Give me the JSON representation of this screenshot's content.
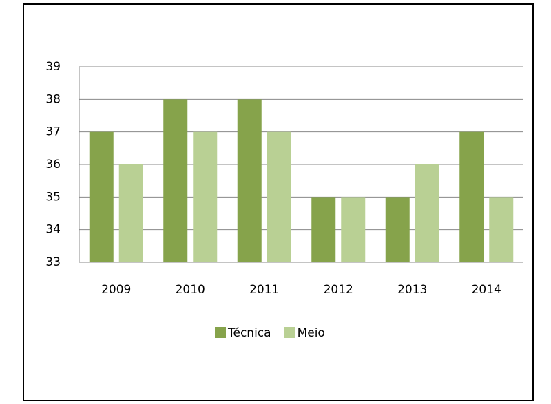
{
  "chart_data": {
    "type": "bar",
    "categories": [
      "2009",
      "2010",
      "2011",
      "2012",
      "2013",
      "2014"
    ],
    "series": [
      {
        "name": "Técnica",
        "color": "#86a34b",
        "values": [
          37,
          38,
          38,
          35,
          35,
          37
        ]
      },
      {
        "name": "Meio",
        "color": "#b9d094",
        "values": [
          36,
          37,
          37,
          35,
          36,
          35
        ]
      }
    ],
    "ylim": [
      33,
      39
    ],
    "yticks": [
      33,
      34,
      35,
      36,
      37,
      38,
      39
    ],
    "grid": true,
    "legend": "bottom"
  }
}
